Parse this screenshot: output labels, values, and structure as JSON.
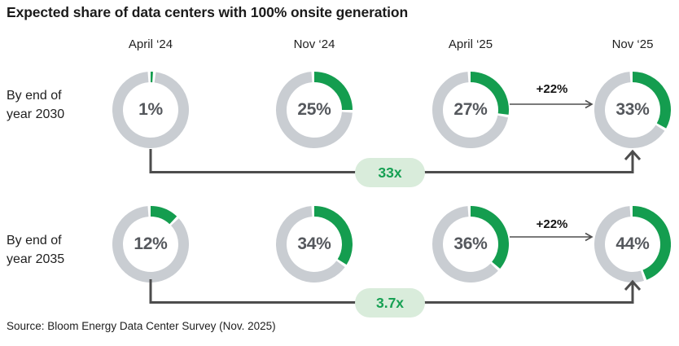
{
  "source": "Source: Bloom Energy Data Center Survey (Nov. 2025)",
  "colors": {
    "green": "#149d4f",
    "ring_gray": "#c9cdd2",
    "value_text": "#55585d",
    "pill_bg": "#d9ecdb",
    "pill_text": "#16a053",
    "line": "#4d4d4d"
  },
  "chart_data": {
    "type": "donut-grid",
    "title": "Expected share of data centers with 100% onsite generation",
    "columns": [
      "April ‘24",
      "Nov ‘24",
      "April ‘25",
      "Nov ‘25"
    ],
    "rows": [
      {
        "label_line1": "By end of",
        "label_line2": "year 2030",
        "values": [
          1,
          25,
          27,
          33
        ],
        "value_labels": [
          "1%",
          "25%",
          "27%",
          "33%"
        ],
        "delta_label": "+22%",
        "multiplier_label": "33x"
      },
      {
        "label_line1": "By end of",
        "label_line2": "year 2035",
        "values": [
          12,
          34,
          36,
          44
        ],
        "value_labels": [
          "12%",
          "34%",
          "36%",
          "44%"
        ],
        "delta_label": "+22%",
        "multiplier_label": "3.7x"
      }
    ],
    "legend": "donut rings: green = share with 100% onsite generation, gray = remainder",
    "axis": "none"
  }
}
